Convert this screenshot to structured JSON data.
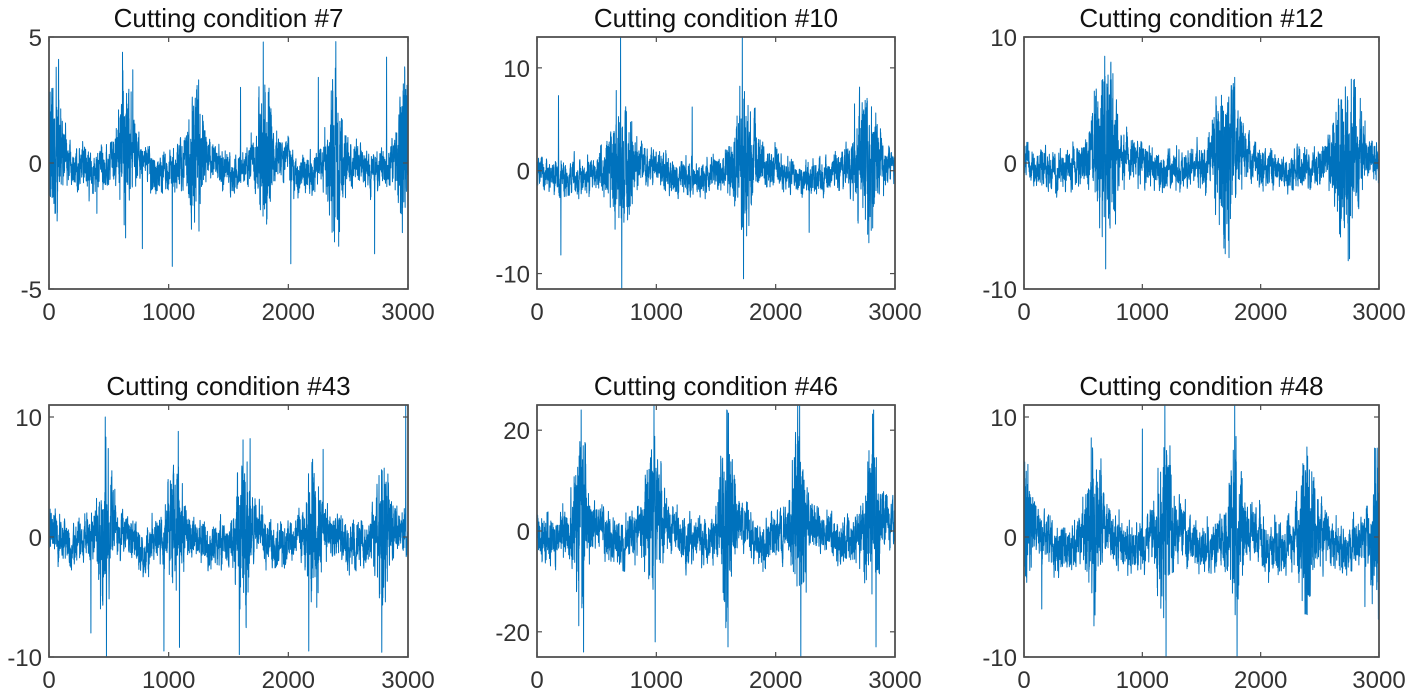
{
  "chart_data": [
    {
      "type": "line",
      "title": "Cutting condition #7",
      "xlim": [
        0,
        3000
      ],
      "ylim": [
        -5,
        5
      ],
      "xticks": [
        0,
        1000,
        2000,
        3000
      ],
      "yticks": [
        -5,
        0,
        5
      ],
      "xtick_labels": [
        "0",
        "1000",
        "2000",
        "3000"
      ],
      "ytick_labels": [
        "-5",
        "0",
        "5"
      ],
      "series": [
        {
          "color": "#0072BD",
          "n_samples": 3000,
          "period": 585,
          "phase": 50,
          "base_amplitude": 0.7,
          "burst_amplitude": 1.9,
          "peaks": [
            {
              "x": 60,
              "y": 3.8
            },
            {
              "x": 400,
              "y": -2.0
            },
            {
              "x": 700,
              "y": 3.7
            },
            {
              "x": 780,
              "y": -3.4
            },
            {
              "x": 1030,
              "y": -4.1
            },
            {
              "x": 1250,
              "y": 3.3
            },
            {
              "x": 1600,
              "y": 3.0
            },
            {
              "x": 1790,
              "y": 4.8
            },
            {
              "x": 2020,
              "y": -4.0
            },
            {
              "x": 2250,
              "y": 3.4
            },
            {
              "x": 2720,
              "y": -3.6
            },
            {
              "x": 2820,
              "y": 4.2
            }
          ]
        }
      ]
    },
    {
      "type": "line",
      "title": "Cutting condition #10",
      "xlim": [
        0,
        3000
      ],
      "ylim": [
        -11.5,
        13
      ],
      "xticks": [
        0,
        1000,
        2000,
        3000
      ],
      "yticks": [
        -10,
        0,
        10
      ],
      "xtick_labels": [
        "0",
        "1000",
        "2000",
        "3000"
      ],
      "ytick_labels": [
        "-10",
        "0",
        "10"
      ],
      "series": [
        {
          "color": "#0072BD",
          "n_samples": 3000,
          "period": 1030,
          "phase": 700,
          "base_amplitude": 1.4,
          "burst_amplitude": 3.5,
          "peaks": [
            {
              "x": 180,
              "y": 7.3
            },
            {
              "x": 200,
              "y": -8.2
            },
            {
              "x": 700,
              "y": 13.0
            },
            {
              "x": 710,
              "y": -11.5
            },
            {
              "x": 1300,
              "y": 6.2
            },
            {
              "x": 1720,
              "y": 13.0
            },
            {
              "x": 1730,
              "y": -10.5
            },
            {
              "x": 2280,
              "y": -6.0
            },
            {
              "x": 2660,
              "y": 6.5
            },
            {
              "x": 2780,
              "y": -7.0
            }
          ]
        }
      ]
    },
    {
      "type": "line",
      "title": "Cutting condition #12",
      "xlim": [
        0,
        3000
      ],
      "ylim": [
        -10,
        10
      ],
      "xticks": [
        0,
        1000,
        2000,
        3000
      ],
      "yticks": [
        -10,
        0,
        10
      ],
      "xtick_labels": [
        "0",
        "1000",
        "2000",
        "3000"
      ],
      "ytick_labels": [
        "-10",
        "0",
        "10"
      ],
      "series": [
        {
          "color": "#0072BD",
          "n_samples": 3000,
          "period": 1020,
          "phase": 690,
          "base_amplitude": 1.3,
          "burst_amplitude": 4.0,
          "peaks": [
            {
              "x": 690,
              "y": -8.4
            },
            {
              "x": 730,
              "y": 6.6
            },
            {
              "x": 1700,
              "y": -7.2
            },
            {
              "x": 1780,
              "y": 6.8
            },
            {
              "x": 2750,
              "y": -7.6
            },
            {
              "x": 2800,
              "y": 6.0
            }
          ]
        }
      ]
    },
    {
      "type": "line",
      "title": "Cutting condition #43",
      "xlim": [
        0,
        3000
      ],
      "ylim": [
        -10,
        11
      ],
      "xticks": [
        0,
        1000,
        2000,
        3000
      ],
      "yticks": [
        -10,
        0,
        10
      ],
      "xtick_labels": [
        "0",
        "1000",
        "2000",
        "3000"
      ],
      "ytick_labels": [
        "-10",
        "0",
        "10"
      ],
      "series": [
        {
          "color": "#0072BD",
          "n_samples": 3000,
          "period": 580,
          "phase": 470,
          "base_amplitude": 1.6,
          "burst_amplitude": 3.5,
          "peaks": [
            {
              "x": 350,
              "y": -8.0
            },
            {
              "x": 470,
              "y": 10.0
            },
            {
              "x": 480,
              "y": -10.0
            },
            {
              "x": 960,
              "y": -9.5
            },
            {
              "x": 1080,
              "y": 8.8
            },
            {
              "x": 1090,
              "y": -9.2
            },
            {
              "x": 1590,
              "y": -9.8
            },
            {
              "x": 1680,
              "y": 8.2
            },
            {
              "x": 2170,
              "y": -9.5
            },
            {
              "x": 2290,
              "y": 7.3
            },
            {
              "x": 2780,
              "y": -9.6
            },
            {
              "x": 2980,
              "y": 11.0
            }
          ]
        }
      ]
    },
    {
      "type": "line",
      "title": "Cutting condition #46",
      "xlim": [
        0,
        3000
      ],
      "ylim": [
        -25,
        25
      ],
      "xticks": [
        0,
        1000,
        2000,
        3000
      ],
      "yticks": [
        -20,
        0,
        20
      ],
      "xtick_labels": [
        "0",
        "1000",
        "2000",
        "3000"
      ],
      "ytick_labels": [
        "-20",
        "0",
        "20"
      ],
      "series": [
        {
          "color": "#0072BD",
          "n_samples": 3000,
          "period": 610,
          "phase": 370,
          "base_amplitude": 4.0,
          "burst_amplitude": 10.0,
          "peaks": [
            {
              "x": 370,
              "y": 24.0
            },
            {
              "x": 390,
              "y": -24.0
            },
            {
              "x": 980,
              "y": 25.0
            },
            {
              "x": 990,
              "y": -22.0
            },
            {
              "x": 1590,
              "y": 24.0
            },
            {
              "x": 1600,
              "y": -23.0
            },
            {
              "x": 2200,
              "y": 25.0
            },
            {
              "x": 2210,
              "y": -25.0
            },
            {
              "x": 2820,
              "y": 24.0
            },
            {
              "x": 2840,
              "y": -23.0
            }
          ]
        }
      ]
    },
    {
      "type": "line",
      "title": "Cutting condition #48",
      "xlim": [
        0,
        3000
      ],
      "ylim": [
        -10,
        11
      ],
      "xticks": [
        0,
        1000,
        2000,
        3000
      ],
      "yticks": [
        -10,
        0,
        10
      ],
      "xtick_labels": [
        "0",
        "1000",
        "2000",
        "3000"
      ],
      "ytick_labels": [
        "-10",
        "0",
        "10"
      ],
      "series": [
        {
          "color": "#0072BD",
          "n_samples": 3000,
          "period": 600,
          "phase": 1190,
          "base_amplitude": 1.8,
          "burst_amplitude": 3.8,
          "peaks": [
            {
              "x": 150,
              "y": -6.0
            },
            {
              "x": 600,
              "y": -6.5
            },
            {
              "x": 1000,
              "y": 9.0
            },
            {
              "x": 1190,
              "y": 11.0
            },
            {
              "x": 1200,
              "y": -10.0
            },
            {
              "x": 1780,
              "y": 11.0
            },
            {
              "x": 1800,
              "y": -10.0
            },
            {
              "x": 2390,
              "y": 7.5
            },
            {
              "x": 2880,
              "y": -5.8
            }
          ]
        }
      ]
    }
  ]
}
